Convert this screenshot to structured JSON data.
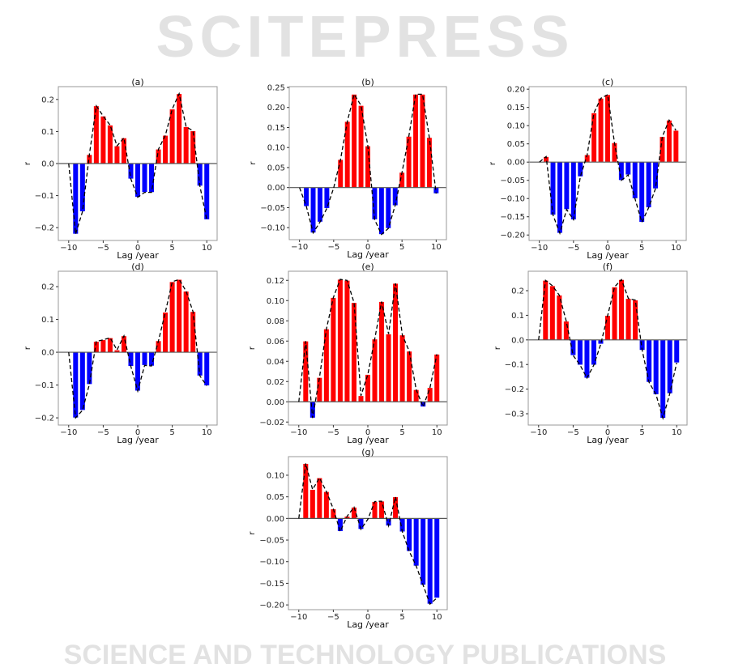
{
  "watermark": {
    "line1": "SCITEPRESS",
    "line2": "SCIENCE AND TECHNOLOGY PUBLICATIONS"
  },
  "colors": {
    "positive": "#ff0000",
    "negative": "#0000ff",
    "line": "#000000",
    "axis": "#999999"
  },
  "chart_data": [
    {
      "type": "bar",
      "title": "(a)",
      "xlabel": "Lag /year",
      "ylabel": "r",
      "xlim": [
        -11.5,
        11.5
      ],
      "ylim": [
        -0.24,
        0.24
      ],
      "xticks": [
        -10,
        -5,
        0,
        5,
        10
      ],
      "yticks": [
        -0.2,
        -0.1,
        0.0,
        0.1,
        0.2
      ],
      "ytick_decimals": 1,
      "x": [
        -10,
        -9,
        -8,
        -7,
        -6,
        -5,
        -4,
        -3,
        -2,
        -1,
        0,
        1,
        2,
        3,
        4,
        5,
        6,
        7,
        8,
        9,
        10
      ],
      "values": [
        0,
        -0.22,
        -0.15,
        0.028,
        0.18,
        0.148,
        0.12,
        0.055,
        0.08,
        -0.048,
        -0.105,
        -0.09,
        -0.09,
        0.045,
        0.088,
        0.17,
        0.218,
        0.115,
        0.102,
        -0.07,
        -0.175
      ]
    },
    {
      "type": "bar",
      "title": "(b)",
      "xlabel": "Lag /year",
      "ylabel": "r",
      "xlim": [
        -11.5,
        11.5
      ],
      "ylim": [
        -0.13,
        0.252
      ],
      "xticks": [
        -10,
        -5,
        0,
        5,
        10
      ],
      "yticks": [
        -0.1,
        -0.05,
        0.0,
        0.05,
        0.1,
        0.15,
        0.2,
        0.25
      ],
      "ytick_decimals": 2,
      "x": [
        -10,
        -9,
        -8,
        -7,
        -6,
        -5,
        -4,
        -3,
        -2,
        -1,
        0,
        1,
        2,
        3,
        4,
        5,
        6,
        7,
        8,
        9,
        10
      ],
      "values": [
        0,
        -0.047,
        -0.113,
        -0.086,
        -0.052,
        -0.001,
        0.07,
        0.165,
        0.233,
        0.205,
        0.104,
        -0.08,
        -0.117,
        -0.102,
        -0.045,
        0.038,
        0.128,
        0.233,
        0.233,
        0.125,
        -0.015
      ]
    },
    {
      "type": "bar",
      "title": "(c)",
      "xlabel": "Lag /year",
      "ylabel": "r",
      "xlim": [
        -11.5,
        11.5
      ],
      "ylim": [
        -0.215,
        0.207
      ],
      "xticks": [
        -10,
        -5,
        0,
        5,
        10
      ],
      "yticks": [
        -0.2,
        -0.15,
        -0.1,
        -0.05,
        0.0,
        0.05,
        0.1,
        0.15,
        0.2
      ],
      "ytick_decimals": 2,
      "x": [
        -10,
        -9,
        -8,
        -7,
        -6,
        -5,
        -4,
        -3,
        -2,
        -1,
        0,
        1,
        2,
        3,
        4,
        5,
        6,
        7,
        8,
        9,
        10
      ],
      "values": [
        0,
        0.015,
        -0.145,
        -0.195,
        -0.13,
        -0.158,
        -0.04,
        0.02,
        0.135,
        0.175,
        0.185,
        0.053,
        -0.05,
        -0.035,
        -0.1,
        -0.165,
        -0.125,
        -0.073,
        0.07,
        0.115,
        0.087
      ]
    },
    {
      "type": "bar",
      "title": "(d)",
      "xlabel": "Lag /year",
      "ylabel": "r",
      "xlim": [
        -11.5,
        11.5
      ],
      "ylim": [
        -0.222,
        0.247
      ],
      "xticks": [
        -10,
        -5,
        0,
        5,
        10
      ],
      "yticks": [
        -0.2,
        -0.1,
        0.0,
        0.1,
        0.2
      ],
      "ytick_decimals": 1,
      "x": [
        -10,
        -9,
        -8,
        -7,
        -6,
        -5,
        -4,
        -3,
        -2,
        -1,
        0,
        1,
        2,
        3,
        4,
        5,
        6,
        7,
        8,
        9,
        10
      ],
      "values": [
        0,
        -0.2,
        -0.177,
        -0.098,
        0.033,
        0.038,
        0.044,
        0.007,
        0.05,
        -0.043,
        -0.118,
        -0.04,
        -0.042,
        0.035,
        0.122,
        0.215,
        0.222,
        0.186,
        0.124,
        -0.072,
        -0.102
      ]
    },
    {
      "type": "bar",
      "title": "(e)",
      "xlabel": "Lag /year",
      "ylabel": "r",
      "xlim": [
        -11.5,
        11.5
      ],
      "ylim": [
        -0.023,
        0.129
      ],
      "xticks": [
        -10,
        -5,
        0,
        5,
        10
      ],
      "yticks": [
        -0.02,
        0.0,
        0.02,
        0.04,
        0.06,
        0.08,
        0.1,
        0.12
      ],
      "ytick_decimals": 2,
      "x": [
        -10,
        -9,
        -8,
        -7,
        -6,
        -5,
        -4,
        -3,
        -2,
        -1,
        0,
        1,
        2,
        3,
        4,
        5,
        6,
        7,
        8,
        9,
        10
      ],
      "values": [
        0,
        0.06,
        -0.016,
        0.024,
        0.072,
        0.103,
        0.121,
        0.12,
        0.098,
        0.006,
        0.027,
        0.062,
        0.099,
        0.067,
        0.117,
        0.066,
        0.05,
        0.012,
        -0.005,
        0.014,
        0.047
      ]
    },
    {
      "type": "bar",
      "title": "(f)",
      "xlabel": "Lag /year",
      "ylabel": "r",
      "xlim": [
        -11.5,
        11.5
      ],
      "ylim": [
        -0.346,
        0.279
      ],
      "xticks": [
        -10,
        -5,
        0,
        5,
        10
      ],
      "yticks": [
        -0.3,
        -0.2,
        -0.1,
        0.0,
        0.1,
        0.2
      ],
      "ytick_decimals": 1,
      "x": [
        -10,
        -9,
        -8,
        -7,
        -6,
        -5,
        -4,
        -3,
        -2,
        -1,
        0,
        1,
        2,
        3,
        4,
        5,
        6,
        7,
        8,
        9,
        10
      ],
      "values": [
        0,
        0.242,
        0.22,
        0.182,
        0.076,
        -0.063,
        -0.102,
        -0.155,
        -0.102,
        -0.017,
        0.099,
        0.215,
        0.245,
        0.168,
        0.162,
        -0.042,
        -0.172,
        -0.222,
        -0.318,
        -0.218,
        -0.093
      ]
    },
    {
      "type": "bar",
      "title": "(g)",
      "xlabel": "Lag /year",
      "ylabel": "r",
      "xlim": [
        -11.5,
        11.5
      ],
      "ylim": [
        -0.211,
        0.143
      ],
      "xticks": [
        -10,
        -5,
        0,
        5,
        10
      ],
      "yticks": [
        -0.2,
        -0.15,
        -0.1,
        -0.05,
        0.0,
        0.05,
        0.1
      ],
      "ytick_decimals": 2,
      "x": [
        -10,
        -9,
        -8,
        -7,
        -6,
        -5,
        -4,
        -3,
        -2,
        -1,
        0,
        1,
        2,
        3,
        4,
        5,
        6,
        7,
        8,
        9,
        10
      ],
      "values": [
        0,
        0.127,
        0.067,
        0.094,
        0.062,
        0.022,
        -0.03,
        0.005,
        0.026,
        -0.025,
        -0.002,
        0.039,
        0.04,
        -0.017,
        0.05,
        -0.031,
        -0.076,
        -0.11,
        -0.154,
        -0.198,
        -0.184
      ]
    }
  ]
}
